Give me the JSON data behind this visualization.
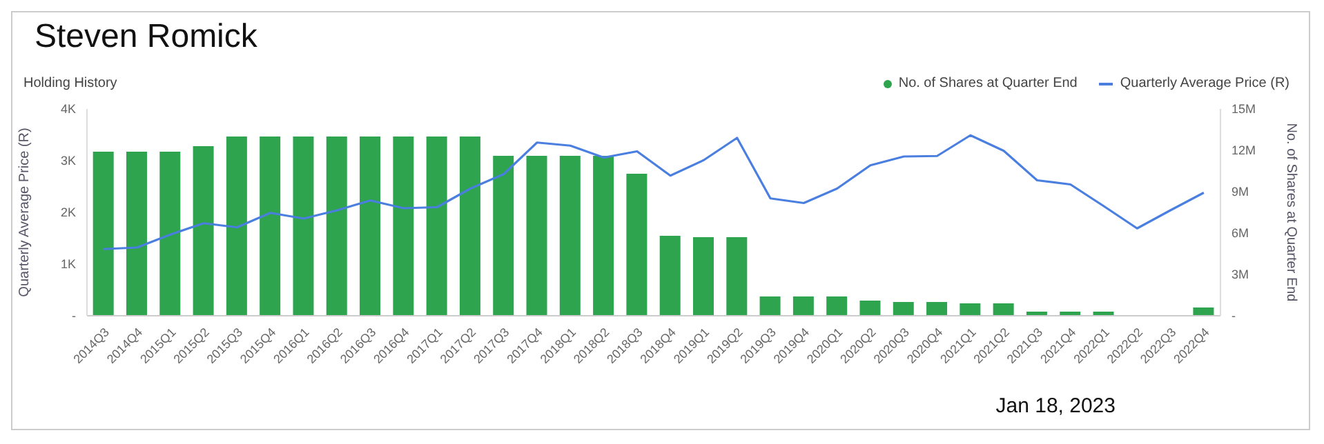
{
  "chart_data": {
    "type": "bar",
    "title": "Steven Romick",
    "subtitle": "Holding History",
    "ylabel": "Quarterly Average Price (R)",
    "y2label": "No. of Shares at Quarter End",
    "categories": [
      "2014Q3",
      "2014Q4",
      "2015Q1",
      "2015Q2",
      "2015Q3",
      "2015Q4",
      "2016Q1",
      "2016Q2",
      "2016Q3",
      "2016Q4",
      "2017Q1",
      "2017Q2",
      "2017Q3",
      "2017Q4",
      "2018Q1",
      "2018Q2",
      "2018Q3",
      "2018Q4",
      "2019Q1",
      "2019Q2",
      "2019Q3",
      "2019Q4",
      "2020Q1",
      "2020Q2",
      "2020Q3",
      "2020Q4",
      "2021Q1",
      "2021Q2",
      "2021Q3",
      "2021Q4",
      "2022Q1",
      "2022Q2",
      "2022Q3",
      "2022Q4"
    ],
    "series": [
      {
        "name": "No. of Shares at Quarter End",
        "axis": "y2",
        "color": "#2ea44f",
        "values": [
          11.9,
          11.9,
          11.9,
          12.3,
          13.0,
          13.0,
          13.0,
          13.0,
          13.0,
          13.0,
          13.0,
          13.0,
          11.6,
          11.6,
          11.6,
          11.6,
          10.3,
          5.8,
          5.7,
          5.7,
          1.4,
          1.4,
          1.4,
          1.1,
          1.0,
          1.0,
          0.9,
          0.9,
          0.3,
          0.3,
          0.3,
          0,
          0,
          0.6
        ]
      },
      {
        "name": "Quarterly Average Price (R)",
        "type": "line",
        "axis": "y",
        "color": "#4a7fe0",
        "values": [
          1.29,
          1.32,
          1.57,
          1.79,
          1.71,
          1.99,
          1.88,
          2.04,
          2.23,
          2.08,
          2.1,
          2.46,
          2.74,
          3.35,
          3.29,
          3.06,
          3.18,
          2.71,
          3.01,
          3.44,
          2.27,
          2.18,
          2.46,
          2.91,
          3.08,
          3.09,
          3.49,
          3.19,
          2.62,
          2.54,
          2.12,
          1.69,
          2.04,
          2.38
        ]
      }
    ],
    "ylim": [
      0,
      4
    ],
    "yticks": [
      {
        "value": 0,
        "label": "-"
      },
      {
        "value": 1,
        "label": "1K"
      },
      {
        "value": 2,
        "label": "2K"
      },
      {
        "value": 3,
        "label": "3K"
      },
      {
        "value": 4,
        "label": "4K"
      }
    ],
    "y2lim": [
      0,
      15
    ],
    "y2ticks": [
      {
        "value": 0,
        "label": "-"
      },
      {
        "value": 3,
        "label": "3M"
      },
      {
        "value": 6,
        "label": "6M"
      },
      {
        "value": 9,
        "label": "9M"
      },
      {
        "value": 12,
        "label": "12M"
      },
      {
        "value": 15,
        "label": "15M"
      }
    ],
    "legend": "top right",
    "marker": "none",
    "annotations": [
      "Jan 18, 2023"
    ]
  }
}
